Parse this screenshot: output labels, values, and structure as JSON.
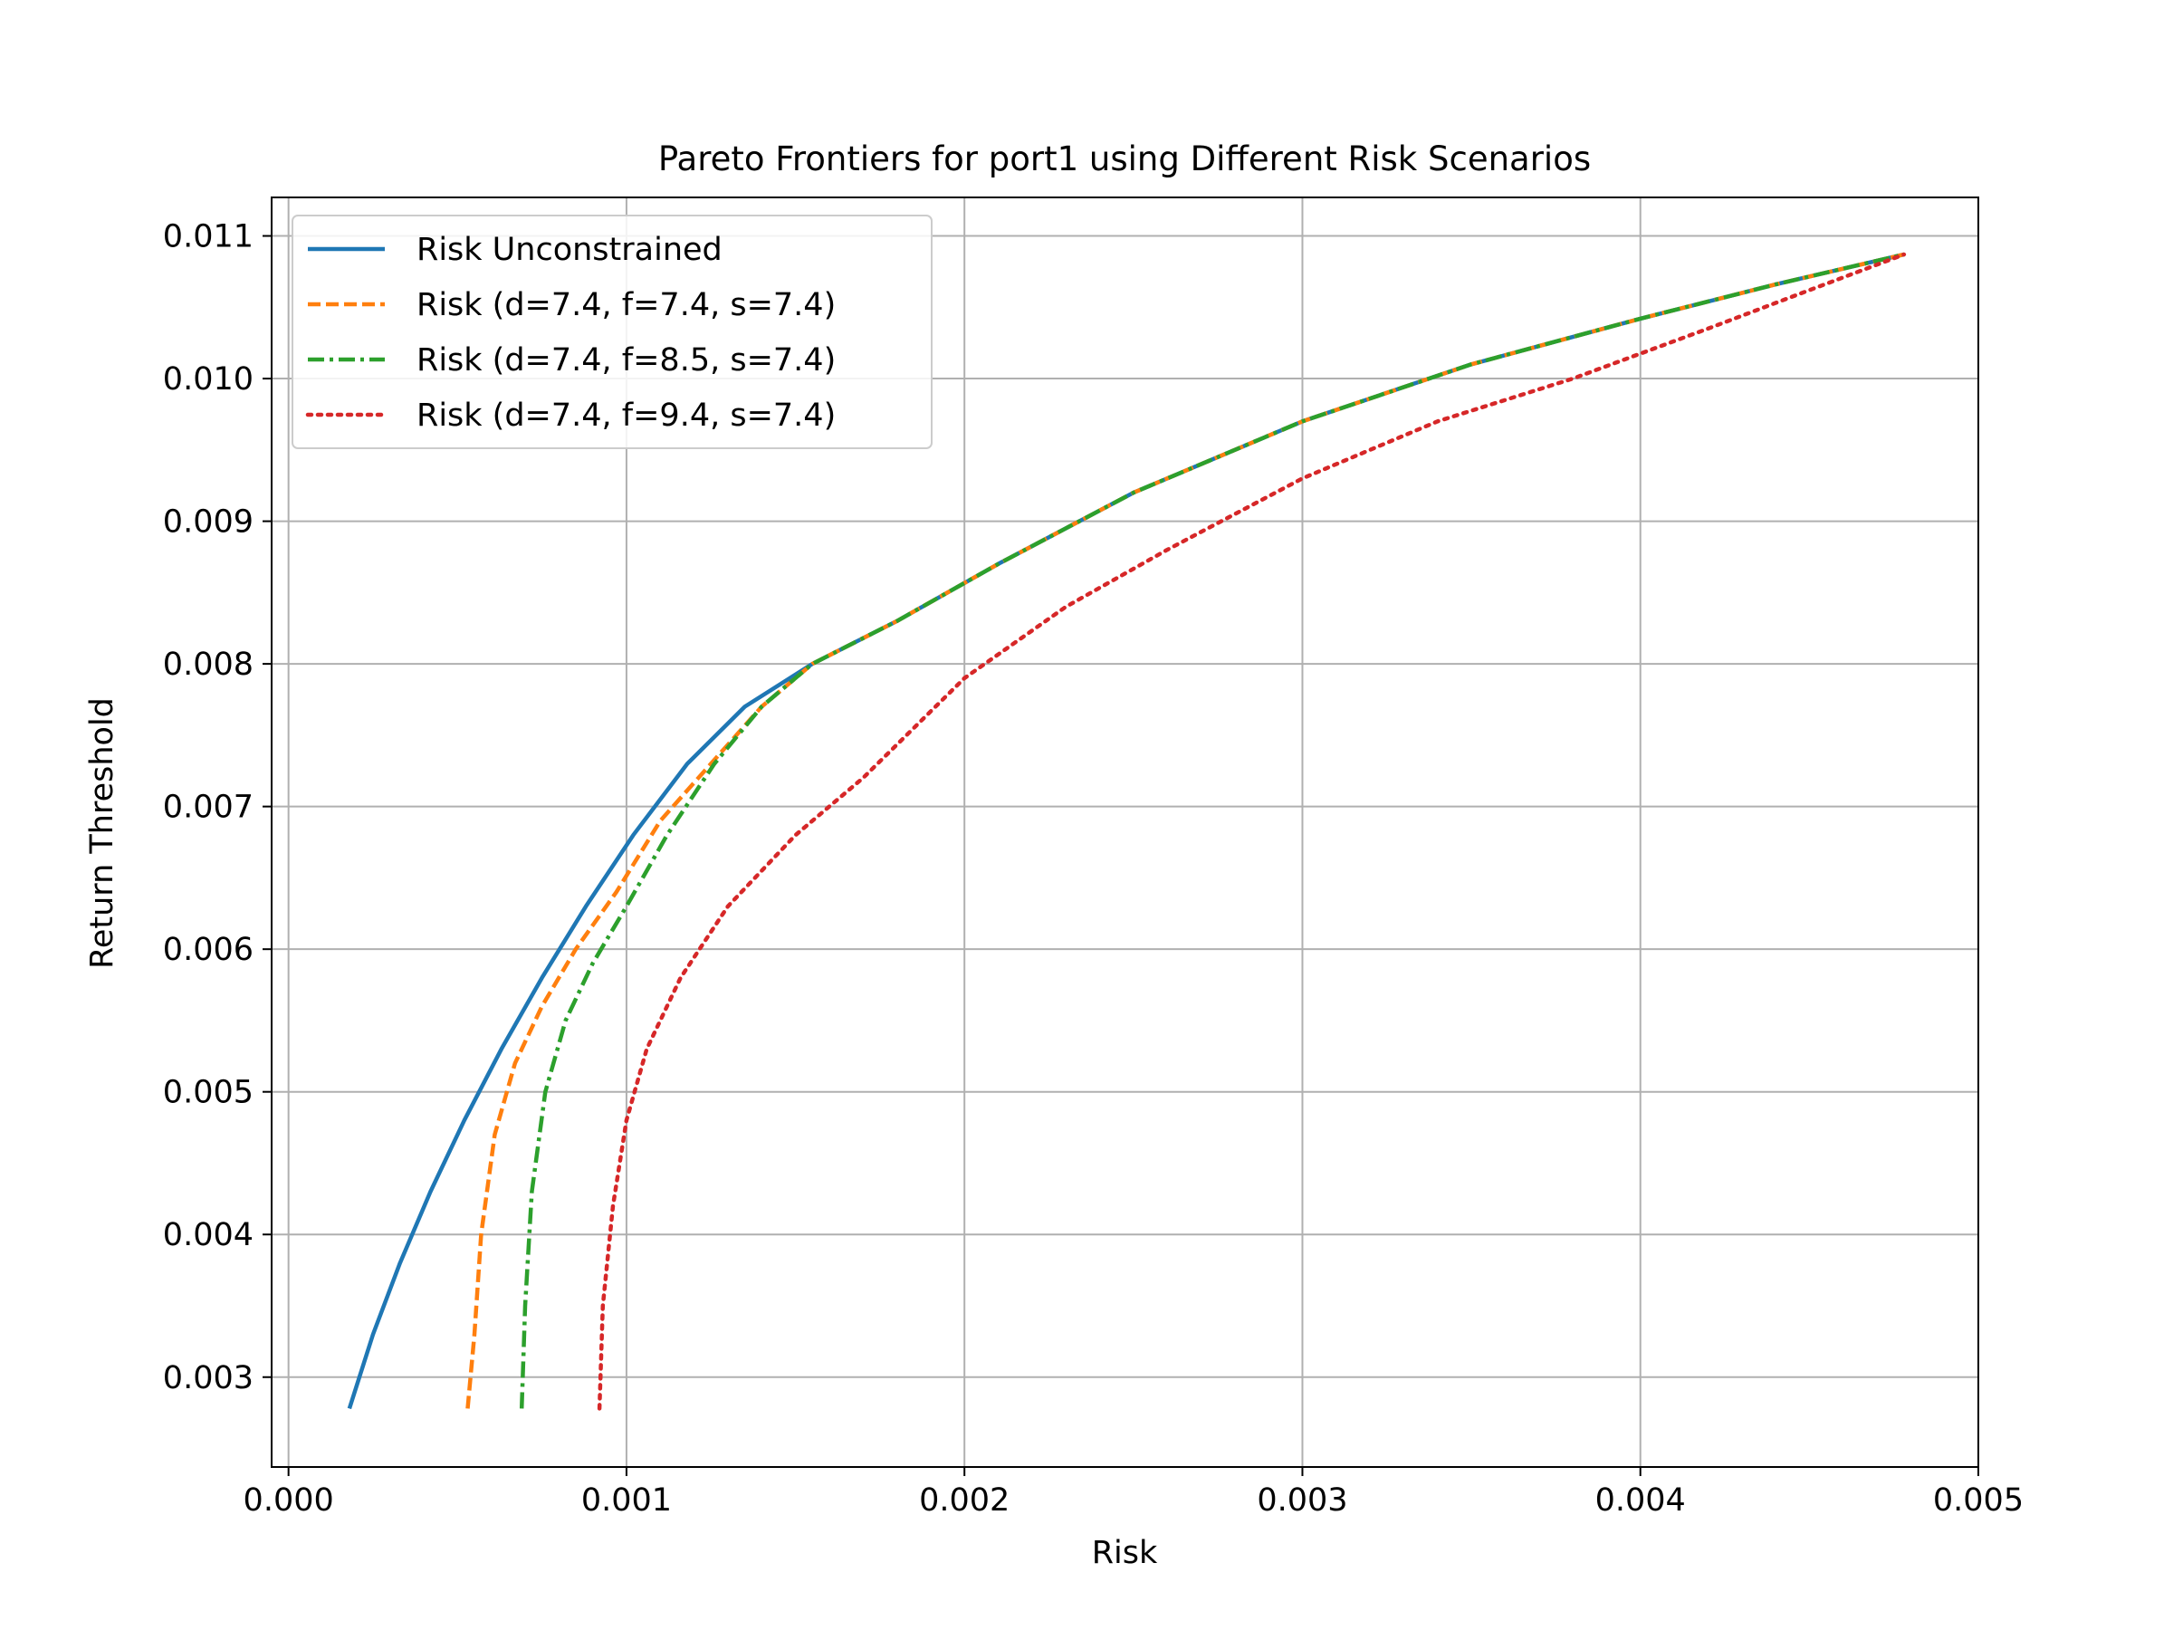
{
  "chart_data": {
    "type": "line",
    "title": "Pareto Frontiers for port1 using Different Risk Scenarios",
    "xlabel": "Risk",
    "ylabel": "Return Threshold",
    "xlim": [
      -5e-05,
      0.005
    ],
    "ylim": [
      0.00237,
      0.01127
    ],
    "xticks": [
      0.0,
      0.001,
      0.002,
      0.003,
      0.004,
      0.005
    ],
    "xtick_labels": [
      "0.000",
      "0.001",
      "0.002",
      "0.003",
      "0.004",
      "0.005"
    ],
    "yticks": [
      0.003,
      0.004,
      0.005,
      0.006,
      0.007,
      0.008,
      0.009,
      0.01,
      0.011
    ],
    "ytick_labels": [
      "0.003",
      "0.004",
      "0.005",
      "0.006",
      "0.007",
      "0.008",
      "0.009",
      "0.010",
      "0.011"
    ],
    "grid": true,
    "legend_position": "upper-left",
    "series": [
      {
        "name": "Risk Unconstrained",
        "color": "#1f77b4",
        "style": "solid",
        "x": [
          0.00018,
          0.00025,
          0.00033,
          0.00042,
          0.00052,
          0.00063,
          0.00075,
          0.00088,
          0.00102,
          0.00118,
          0.00135,
          0.00155,
          0.0018,
          0.0021,
          0.0025,
          0.003,
          0.0035,
          0.004,
          0.0044,
          0.00478
        ],
        "y": [
          0.00278,
          0.0033,
          0.0038,
          0.0043,
          0.0048,
          0.0053,
          0.0058,
          0.0063,
          0.0068,
          0.0073,
          0.0077,
          0.008,
          0.0083,
          0.0087,
          0.0092,
          0.0097,
          0.0101,
          0.01042,
          0.01066,
          0.01087
        ]
      },
      {
        "name": "Risk (d=7.4, f=7.4, s=7.4)",
        "color": "#ff7f0e",
        "style": "dashed",
        "x": [
          0.00053,
          0.00055,
          0.00057,
          0.00061,
          0.00067,
          0.00075,
          0.00085,
          0.00097,
          0.0011,
          0.00125,
          0.0014,
          0.00155,
          0.0018,
          0.0021,
          0.0025,
          0.003,
          0.0035,
          0.004,
          0.0044,
          0.00478
        ],
        "y": [
          0.00278,
          0.0033,
          0.004,
          0.0047,
          0.0052,
          0.0056,
          0.006,
          0.0064,
          0.0069,
          0.0073,
          0.0077,
          0.008,
          0.0083,
          0.0087,
          0.0092,
          0.0097,
          0.0101,
          0.01042,
          0.01066,
          0.01087
        ]
      },
      {
        "name": "Risk (d=7.4, f=8.5, s=7.4)",
        "color": "#2ca02c",
        "style": "dashdot",
        "x": [
          0.00069,
          0.0007,
          0.00072,
          0.00076,
          0.00082,
          0.0009,
          0.001,
          0.00112,
          0.00126,
          0.0014,
          0.00155,
          0.0018,
          0.0021,
          0.0025,
          0.003,
          0.0035,
          0.004,
          0.0044,
          0.00478
        ],
        "y": [
          0.00278,
          0.0035,
          0.0043,
          0.005,
          0.0055,
          0.0059,
          0.0063,
          0.0068,
          0.0073,
          0.0077,
          0.008,
          0.0083,
          0.0087,
          0.0092,
          0.0097,
          0.0101,
          0.01042,
          0.01066,
          0.01087
        ]
      },
      {
        "name": "Risk (d=7.4, f=9.4, s=7.4)",
        "color": "#d62728",
        "style": "dotted",
        "x": [
          0.00092,
          0.00093,
          0.00096,
          0.001,
          0.00106,
          0.00116,
          0.0013,
          0.0015,
          0.0017,
          0.002,
          0.0023,
          0.0026,
          0.003,
          0.0034,
          0.0038,
          0.0042,
          0.0045,
          0.00478
        ],
        "y": [
          0.00278,
          0.0035,
          0.0042,
          0.0048,
          0.0053,
          0.0058,
          0.0063,
          0.0068,
          0.0072,
          0.0079,
          0.0084,
          0.0088,
          0.0093,
          0.0097,
          0.01,
          0.01035,
          0.01062,
          0.01087
        ]
      }
    ]
  }
}
